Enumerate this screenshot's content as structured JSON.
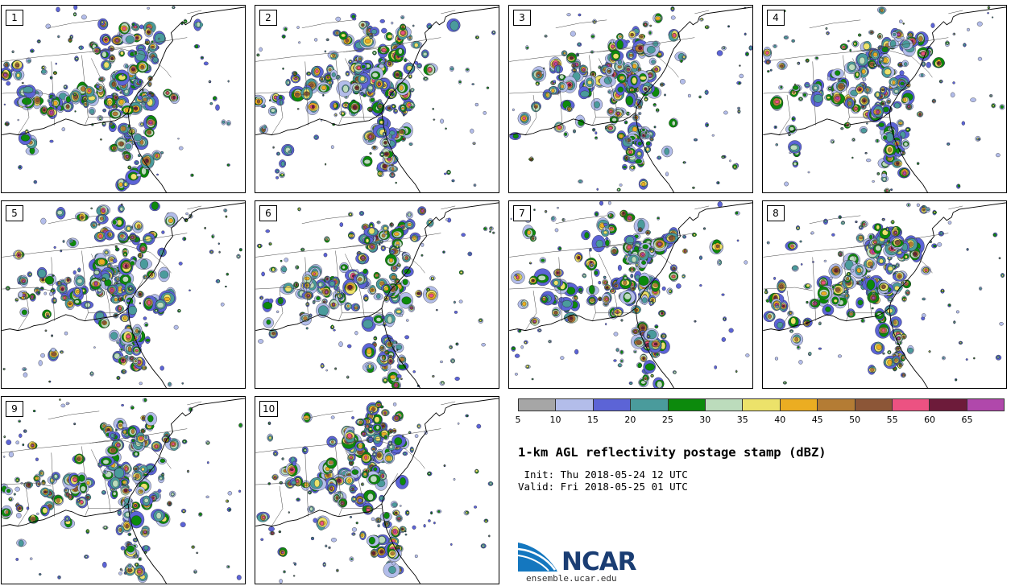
{
  "title": "1-km AGL reflectivity postage stamp (dBZ)",
  "init_label": " Init: Thu 2018-05-24 12 UTC",
  "valid_label": "Valid: Fri 2018-05-25 01 UTC",
  "logo": {
    "name": "NCAR",
    "url": "ensemble.ucar.edu"
  },
  "members": [
    "1",
    "2",
    "3",
    "4",
    "5",
    "6",
    "7",
    "8",
    "9",
    "10"
  ],
  "colorbar": {
    "ticks": [
      "5",
      "10",
      "15",
      "20",
      "25",
      "30",
      "35",
      "40",
      "45",
      "50",
      "55",
      "60",
      "65"
    ],
    "colors": [
      "#a6a6a6",
      "#b3bdea",
      "#5c64d6",
      "#4a9b9c",
      "#0c8a0c",
      "#bcdcbc",
      "#ece26a",
      "#ebad22",
      "#b47c34",
      "#8c5637",
      "#ec5282",
      "#6d1b3a",
      "#b048ab"
    ]
  }
}
